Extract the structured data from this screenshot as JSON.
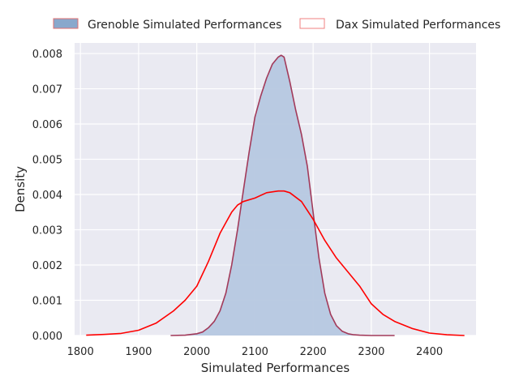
{
  "chart_data": {
    "type": "area",
    "xlabel": "Simulated Performances",
    "ylabel": "Density",
    "xlim": [
      1790,
      2480
    ],
    "ylim": [
      0,
      0.0083
    ],
    "xticks": [
      1800,
      1900,
      2000,
      2100,
      2200,
      2300,
      2400
    ],
    "yticks": [
      0.0,
      0.001,
      0.002,
      0.003,
      0.004,
      0.005,
      0.006,
      0.007,
      0.008
    ],
    "ytick_labels": [
      "0.000",
      "0.001",
      "0.002",
      "0.003",
      "0.004",
      "0.005",
      "0.006",
      "0.007",
      "0.008"
    ],
    "grid": true,
    "legend_placement": "top",
    "series": [
      {
        "name": "Grenoble Simulated Performances",
        "style": "filled",
        "fill_color": "#b6c8e0",
        "line_color": "#a23a5a",
        "legend_fill": "#88a8cc",
        "legend_edge": "#e07070",
        "x": [
          1955,
          1980,
          2000,
          2010,
          2020,
          2030,
          2040,
          2050,
          2060,
          2070,
          2080,
          2090,
          2100,
          2110,
          2120,
          2130,
          2140,
          2145,
          2150,
          2160,
          2170,
          2180,
          2190,
          2200,
          2210,
          2220,
          2230,
          2240,
          2250,
          2260,
          2270,
          2280,
          2300,
          2340
        ],
        "values": [
          0.0,
          1e-05,
          5e-05,
          0.0001,
          0.00022,
          0.0004,
          0.0007,
          0.0012,
          0.002,
          0.003,
          0.0041,
          0.0052,
          0.0062,
          0.0068,
          0.0073,
          0.0077,
          0.0079,
          0.00795,
          0.0079,
          0.0072,
          0.0064,
          0.0057,
          0.0048,
          0.0035,
          0.0022,
          0.0012,
          0.0006,
          0.00028,
          0.00012,
          5e-05,
          2e-05,
          1e-05,
          0.0,
          0.0
        ]
      },
      {
        "name": "Dax Simulated Performances",
        "style": "line",
        "line_color": "#ff0000",
        "legend_fill": "#ffffff",
        "legend_edge": "#f08080",
        "x": [
          1810,
          1840,
          1870,
          1900,
          1930,
          1960,
          1980,
          2000,
          2020,
          2040,
          2050,
          2060,
          2070,
          2080,
          2100,
          2120,
          2140,
          2150,
          2160,
          2180,
          2200,
          2220,
          2240,
          2260,
          2280,
          2300,
          2320,
          2340,
          2370,
          2400,
          2430,
          2460
        ],
        "values": [
          1e-05,
          3e-05,
          6e-05,
          0.00015,
          0.00035,
          0.0007,
          0.001,
          0.0014,
          0.0021,
          0.0029,
          0.0032,
          0.0035,
          0.0037,
          0.0038,
          0.0039,
          0.00405,
          0.0041,
          0.0041,
          0.00405,
          0.0038,
          0.0033,
          0.0027,
          0.0022,
          0.0018,
          0.0014,
          0.0009,
          0.0006,
          0.0004,
          0.0002,
          7e-05,
          2e-05,
          0.0
        ]
      }
    ]
  }
}
